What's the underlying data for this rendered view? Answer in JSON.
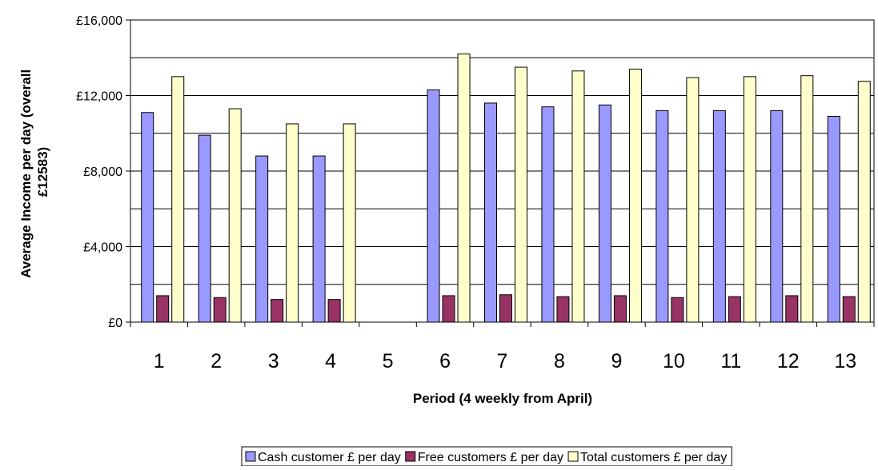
{
  "chart_data": {
    "type": "bar",
    "title": "",
    "xlabel": "Period (4 weekly from April)",
    "ylabel_lines": [
      "Average Income per day (overall",
      "£12583)"
    ],
    "categories": [
      "1",
      "2",
      "3",
      "4",
      "5",
      "6",
      "7",
      "8",
      "9",
      "10",
      "11",
      "12",
      "13"
    ],
    "ylim": [
      0,
      16000
    ],
    "yticks": [
      0,
      4000,
      8000,
      12000,
      16000
    ],
    "ytick_labels": [
      "£0",
      "£4,000",
      "£8,000",
      "£12,000",
      "£16,000"
    ],
    "gridlines": [
      0,
      2000,
      4000,
      6000,
      8000,
      10000,
      12000,
      14000,
      16000
    ],
    "legend_position": "bottom",
    "series": [
      {
        "name": "Cash customer £ per day",
        "color": "#9999ff",
        "values": [
          11100,
          9900,
          8800,
          8800,
          null,
          12300,
          11600,
          11400,
          11500,
          11200,
          11200,
          11200,
          10900
        ]
      },
      {
        "name": "Free customers £ per day",
        "color": "#993366",
        "values": [
          1400,
          1300,
          1200,
          1200,
          null,
          1400,
          1450,
          1350,
          1400,
          1300,
          1350,
          1400,
          1350
        ]
      },
      {
        "name": "Total customers £ per day",
        "color": "#ffffcc",
        "values": [
          13000,
          11300,
          10500,
          10500,
          null,
          14200,
          13500,
          13300,
          13400,
          12950,
          13000,
          13050,
          12750
        ]
      }
    ]
  }
}
